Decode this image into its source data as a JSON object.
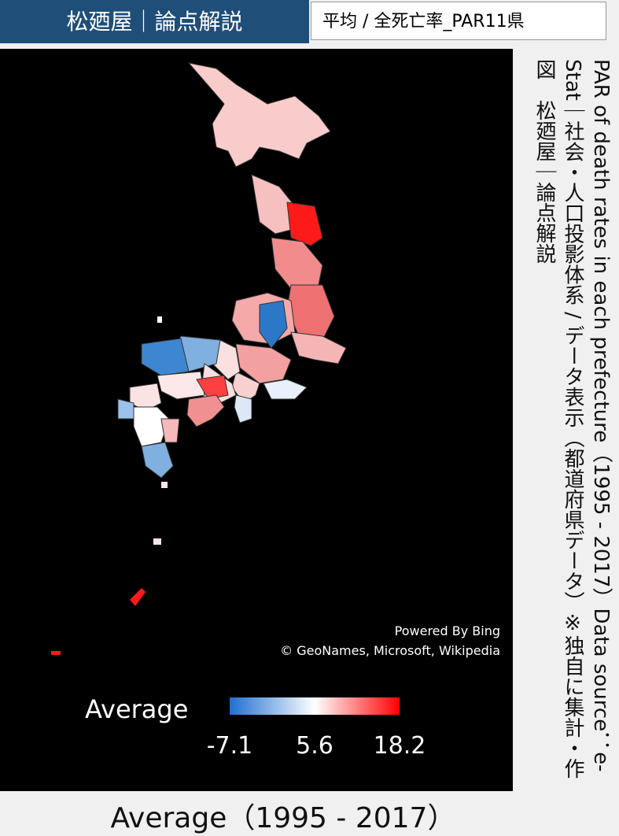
{
  "header": {
    "title": "松廼屋｜論点解説",
    "subtitle": "平均 / 全死亡率_PAR11県"
  },
  "side_note": "PAR of death rates in each prefecture（1995 - 2017）Data source：e-Stat｜社会・人口投影体系 / データ表示（都道府県データ）※独自に集計・作図　松廼屋｜論点解説",
  "map": {
    "credit_1": "Powered By Bing",
    "credit_2": "© GeoNames, Microsoft, Wikipedia",
    "legend": {
      "title": "Average",
      "min": -7.1,
      "mid": 5.6,
      "max": 18.2
    }
  },
  "footer": "Average（1995 - 2017）"
}
